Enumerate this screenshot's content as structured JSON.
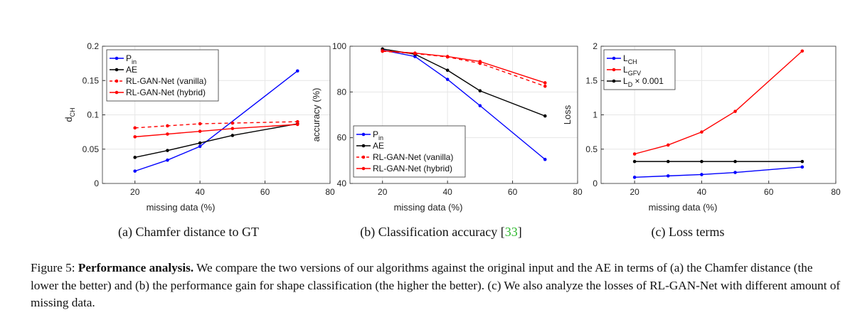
{
  "charts": [
    {
      "id": "a",
      "chart_data": {
        "type": "line",
        "title": "Chamfer distance to GT",
        "xlabel": "missing data (%)",
        "ylabel": "d",
        "ylabel_sub": "CH",
        "xlim": [
          10,
          80
        ],
        "ylim": [
          0,
          0.2
        ],
        "xticks": [
          20,
          40,
          60,
          80
        ],
        "yticks": [
          0,
          0.05,
          0.1,
          0.15,
          0.2
        ],
        "ytick_labels": [
          "0",
          "0.05",
          "0.1",
          "0.15",
          "0.2"
        ],
        "grid": true,
        "legend_position": "top-left",
        "x": [
          20,
          30,
          40,
          50,
          70
        ],
        "series": [
          {
            "name": "P",
            "sub": "in",
            "color": "#0000ff",
            "dash": false,
            "values": [
              0.018,
              0.034,
              0.054,
              null,
              0.164
            ]
          },
          {
            "name": "AE",
            "sub": "",
            "color": "#000000",
            "dash": false,
            "values": [
              0.038,
              0.048,
              0.059,
              0.07,
              0.087
            ]
          },
          {
            "name": "RL-GAN-Net (vanilla)",
            "sub": "",
            "color": "#ff0000",
            "dash": true,
            "values": [
              0.081,
              0.084,
              0.087,
              0.088,
              0.09
            ]
          },
          {
            "name": "RL-GAN-Net (hybrid)",
            "sub": "",
            "color": "#ff0000",
            "dash": false,
            "values": [
              0.068,
              0.072,
              0.076,
              0.08,
              0.086
            ]
          }
        ]
      },
      "caption": {
        "label": "(a) Chamfer distance to GT",
        "ref": ""
      }
    },
    {
      "id": "b",
      "chart_data": {
        "type": "line",
        "title": "Classification accuracy",
        "xlabel": "missing data (%)",
        "ylabel": "accuracy (%)",
        "ylabel_sub": "",
        "xlim": [
          10,
          80
        ],
        "ylim": [
          40,
          100
        ],
        "xticks": [
          20,
          40,
          60,
          80
        ],
        "yticks": [
          40,
          60,
          80,
          100
        ],
        "ytick_labels": [
          "40",
          "60",
          "80",
          "100"
        ],
        "grid": true,
        "legend_position": "bottom-left",
        "x": [
          20,
          30,
          40,
          50,
          70
        ],
        "series": [
          {
            "name": "P",
            "sub": "in",
            "color": "#0000ff",
            "dash": false,
            "values": [
              98.3,
              95.5,
              85.5,
              74.0,
              50.5
            ]
          },
          {
            "name": "AE",
            "sub": "",
            "color": "#000000",
            "dash": false,
            "values": [
              98.8,
              96.5,
              89.5,
              80.5,
              69.5
            ]
          },
          {
            "name": "RL-GAN-Net (vanilla)",
            "sub": "",
            "color": "#ff0000",
            "dash": true,
            "values": [
              97.8,
              96.8,
              95.3,
              92.5,
              82.5
            ]
          },
          {
            "name": "RL-GAN-Net (hybrid)",
            "sub": "",
            "color": "#ff0000",
            "dash": false,
            "values": [
              98.0,
              97.0,
              95.5,
              93.3,
              84.0
            ]
          }
        ]
      },
      "caption": {
        "label": "(b) Classification accuracy [",
        "ref": "33",
        "suffix": "]"
      }
    },
    {
      "id": "c",
      "chart_data": {
        "type": "line",
        "title": "Loss terms",
        "xlabel": "missing data (%)",
        "ylabel": "Loss",
        "ylabel_sub": "",
        "xlim": [
          10,
          80
        ],
        "ylim": [
          0,
          2
        ],
        "xticks": [
          20,
          40,
          60,
          80
        ],
        "yticks": [
          0,
          0.5,
          1,
          1.5,
          2
        ],
        "ytick_labels": [
          "0",
          "0.5",
          "1",
          "1.5",
          "2"
        ],
        "grid": true,
        "legend_position": "top-left",
        "x": [
          20,
          30,
          40,
          50,
          70
        ],
        "series": [
          {
            "name": "L",
            "sub": "CH",
            "suffix": "",
            "color": "#0000ff",
            "dash": false,
            "values": [
              0.09,
              0.11,
              0.13,
              0.16,
              0.24
            ]
          },
          {
            "name": "L",
            "sub": "GFV",
            "suffix": "",
            "color": "#ff0000",
            "dash": false,
            "values": [
              0.43,
              0.56,
              0.75,
              1.05,
              1.93
            ]
          },
          {
            "name": "L",
            "sub": "D",
            "suffix": " × 0.001",
            "color": "#000000",
            "dash": false,
            "values": [
              0.32,
              0.32,
              0.32,
              0.32,
              0.32
            ]
          }
        ]
      },
      "caption": {
        "label": "(c) Loss terms",
        "ref": ""
      }
    }
  ],
  "figure_caption": {
    "prefix": "Figure 5: ",
    "bold": "Performance analysis.",
    "text": " We compare the two versions of our algorithms against the original input and the AE in terms of (a) the Chamfer distance (the lower the better) and (b) the performance gain for shape classification (the higher the better). (c) We also analyze the losses of RL-GAN-Net with different amount of missing data."
  }
}
